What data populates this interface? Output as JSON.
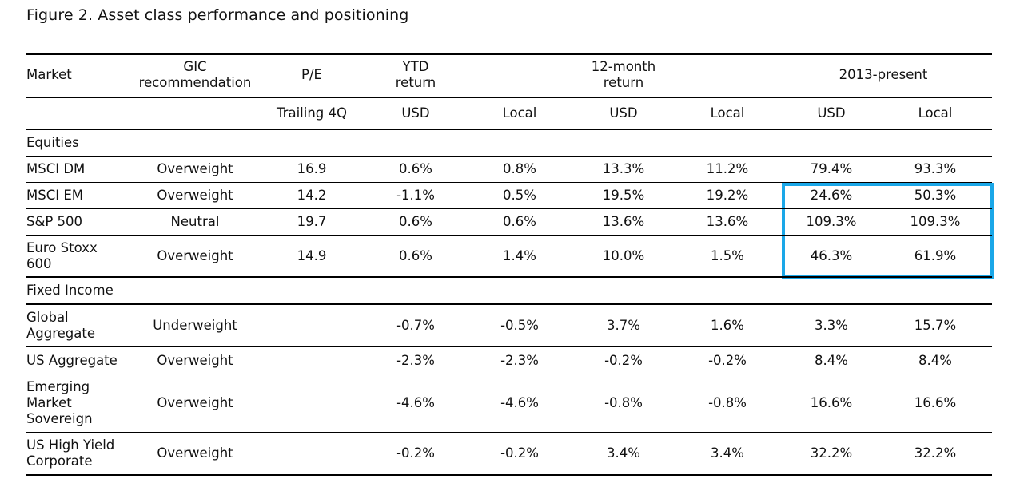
{
  "title": "Figure 2. Asset class performance and positioning",
  "headers": {
    "market": "Market",
    "gic": "GIC\nrecommendation",
    "pe": "P/E",
    "ytd": "YTD\nreturn",
    "twelve_month": "12-month\nreturn",
    "since_2013": "2013-present"
  },
  "subheaders": {
    "pe": "Trailing 4Q",
    "ytd_usd": "USD",
    "ytd_local": "Local",
    "m12_usd": "USD",
    "m12_local": "Local",
    "s2013_usd": "USD",
    "s2013_local": "Local"
  },
  "sections": {
    "equities": "Equities",
    "fixed_income": "Fixed Income"
  },
  "rows": [
    {
      "market": "MSCI DM",
      "rec": "Overweight",
      "pe": "16.9",
      "ytd_usd": "0.6%",
      "ytd_local": "0.8%",
      "m12_usd": "13.3%",
      "m12_local": "11.2%",
      "s_usd": "79.4%",
      "s_local": "93.3%"
    },
    {
      "market": "MSCI EM",
      "rec": "Overweight",
      "pe": "14.2",
      "ytd_usd": "-1.1%",
      "ytd_local": "0.5%",
      "m12_usd": "19.5%",
      "m12_local": "19.2%",
      "s_usd": "24.6%",
      "s_local": "50.3%"
    },
    {
      "market": "S&P 500",
      "rec": "Neutral",
      "pe": "19.7",
      "ytd_usd": "0.6%",
      "ytd_local": "0.6%",
      "m12_usd": "13.6%",
      "m12_local": "13.6%",
      "s_usd": "109.3%",
      "s_local": "109.3%"
    },
    {
      "market": "Euro Stoxx\n600",
      "rec": "Overweight",
      "pe": "14.9",
      "ytd_usd": "0.6%",
      "ytd_local": "1.4%",
      "m12_usd": "10.0%",
      "m12_local": "1.5%",
      "s_usd": "46.3%",
      "s_local": "61.9%"
    },
    {
      "market": "Global\nAggregate",
      "rec": "Underweight",
      "pe": "",
      "ytd_usd": "-0.7%",
      "ytd_local": "-0.5%",
      "m12_usd": "3.7%",
      "m12_local": "1.6%",
      "s_usd": "3.3%",
      "s_local": "15.7%"
    },
    {
      "market": "US Aggregate",
      "rec": "Overweight",
      "pe": "",
      "ytd_usd": "-2.3%",
      "ytd_local": "-2.3%",
      "m12_usd": "-0.2%",
      "m12_local": "-0.2%",
      "s_usd": "8.4%",
      "s_local": "8.4%"
    },
    {
      "market": "Emerging\nMarket\nSovereign",
      "rec": "Overweight",
      "pe": "",
      "ytd_usd": "-4.6%",
      "ytd_local": "-4.6%",
      "m12_usd": "-0.8%",
      "m12_local": "-0.8%",
      "s_usd": "16.6%",
      "s_local": "16.6%"
    },
    {
      "market": "US High Yield\nCorporate",
      "rec": "Overweight",
      "pe": "",
      "ytd_usd": "-0.2%",
      "ytd_local": "-0.2%",
      "m12_usd": "3.4%",
      "m12_local": "3.4%",
      "s_usd": "32.2%",
      "s_local": "32.2%"
    }
  ],
  "highlight_color": "#1aa7e8"
}
